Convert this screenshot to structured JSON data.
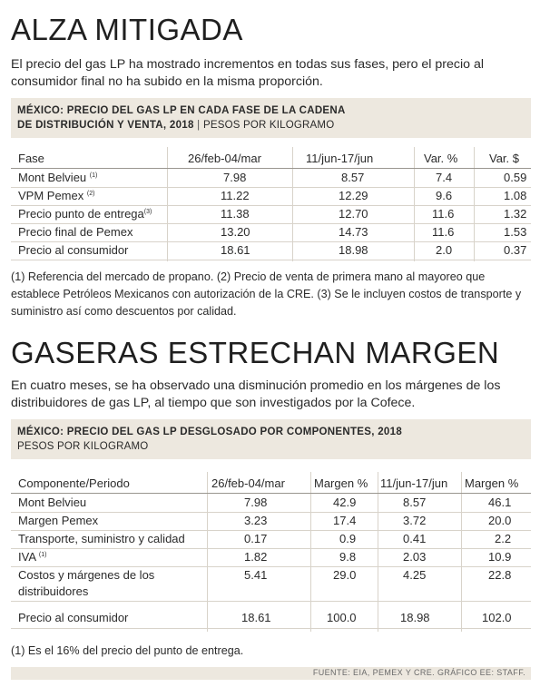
{
  "section1": {
    "headline": "ALZA MITIGADA",
    "lead": "El precio del gas LP ha mostrado incrementos en todas sus fases, pero el precio al consumidor final no ha subido en la misma proporción.",
    "table_title_line1": "México: precio del gas LP en cada fase de la cadena",
    "table_title_line2": "de distribución y venta, 2018",
    "table_title_sep": "|",
    "table_units": "PESOS POR KILOGRAMO",
    "headers": [
      "Fase",
      "26/feb-04/mar",
      "11/jun-17/jun",
      "Var. %",
      "Var. $"
    ],
    "rows": [
      {
        "label": "Mont Belvieu",
        "sup": "(1)",
        "v1": "7.98",
        "v2": "8.57",
        "v3": "7.4",
        "v4": "0.59"
      },
      {
        "label": "VPM Pemex",
        "sup": "(2)",
        "v1": "11.22",
        "v2": "12.29",
        "v3": "9.6",
        "v4": "1.08"
      },
      {
        "label": "Precio punto de entrega",
        "sup": "(3)",
        "v1": "11.38",
        "v2": "12.70",
        "v3": "11.6",
        "v4": "1.32"
      },
      {
        "label": "Precio final de Pemex",
        "sup": "",
        "v1": "13.20",
        "v2": "14.73",
        "v3": "11.6",
        "v4": "1.53"
      },
      {
        "label": "Precio al consumidor",
        "sup": "",
        "v1": "18.61",
        "v2": "18.98",
        "v3": "2.0",
        "v4": "0.37"
      }
    ],
    "notes": "(1) Referencia del mercado de propano. (2) Precio de venta de primera mano al mayoreo que establece Petróleos Mexicanos con autorización de la CRE. (3) Se le incluyen costos de transporte y suministro así como descuentos por calidad."
  },
  "section2": {
    "headline": "GASERAS ESTRECHAN MARGEN",
    "lead": "En cuatro meses, se ha observado una disminución promedio en los márgenes de los distribuidores de gas LP, al tiempo que son investigados por la Cofece.",
    "table_title": "México: precio del gas LP desglosado por componentes, 2018",
    "table_units": "PESOS POR KILOGRAMO",
    "headers": [
      "Componente/Periodo",
      "26/feb-04/mar",
      "Margen %",
      "11/jun-17/jun",
      "Margen %"
    ],
    "rows": [
      {
        "label": "Mont Belvieu",
        "label2": "",
        "sup": "",
        "v1": "7.98",
        "v2": "42.9",
        "v3": "8.57",
        "v4": "46.1"
      },
      {
        "label": "Margen Pemex",
        "label2": "",
        "sup": "",
        "v1": "3.23",
        "v2": "17.4",
        "v3": "3.72",
        "v4": "20.0"
      },
      {
        "label": "Transporte, suministro y calidad",
        "label2": "",
        "sup": "",
        "v1": "0.17",
        "v2": "0.9",
        "v3": "0.41",
        "v4": "2.2"
      },
      {
        "label": "IVA",
        "label2": "",
        "sup": "(1)",
        "v1": "1.82",
        "v2": "9.8",
        "v3": "2.03",
        "v4": "10.9"
      },
      {
        "label": "Costos y márgenes de los",
        "label2": "distribuidores",
        "sup": "",
        "v1": "5.41",
        "v2": "29.0",
        "v3": "4.25",
        "v4": "22.8"
      },
      {
        "label": "Precio al consumidor",
        "label2": "",
        "sup": "",
        "v1": "18.61",
        "v2": "100.0",
        "v3": "18.98",
        "v4": "102.0"
      }
    ],
    "notes": "(1) Es el 16% del precio del punto de entrega."
  },
  "footer": {
    "source": "FUENTE: EIA, PEMEX Y CRE.  GRÁFICO EE: STAFF."
  }
}
